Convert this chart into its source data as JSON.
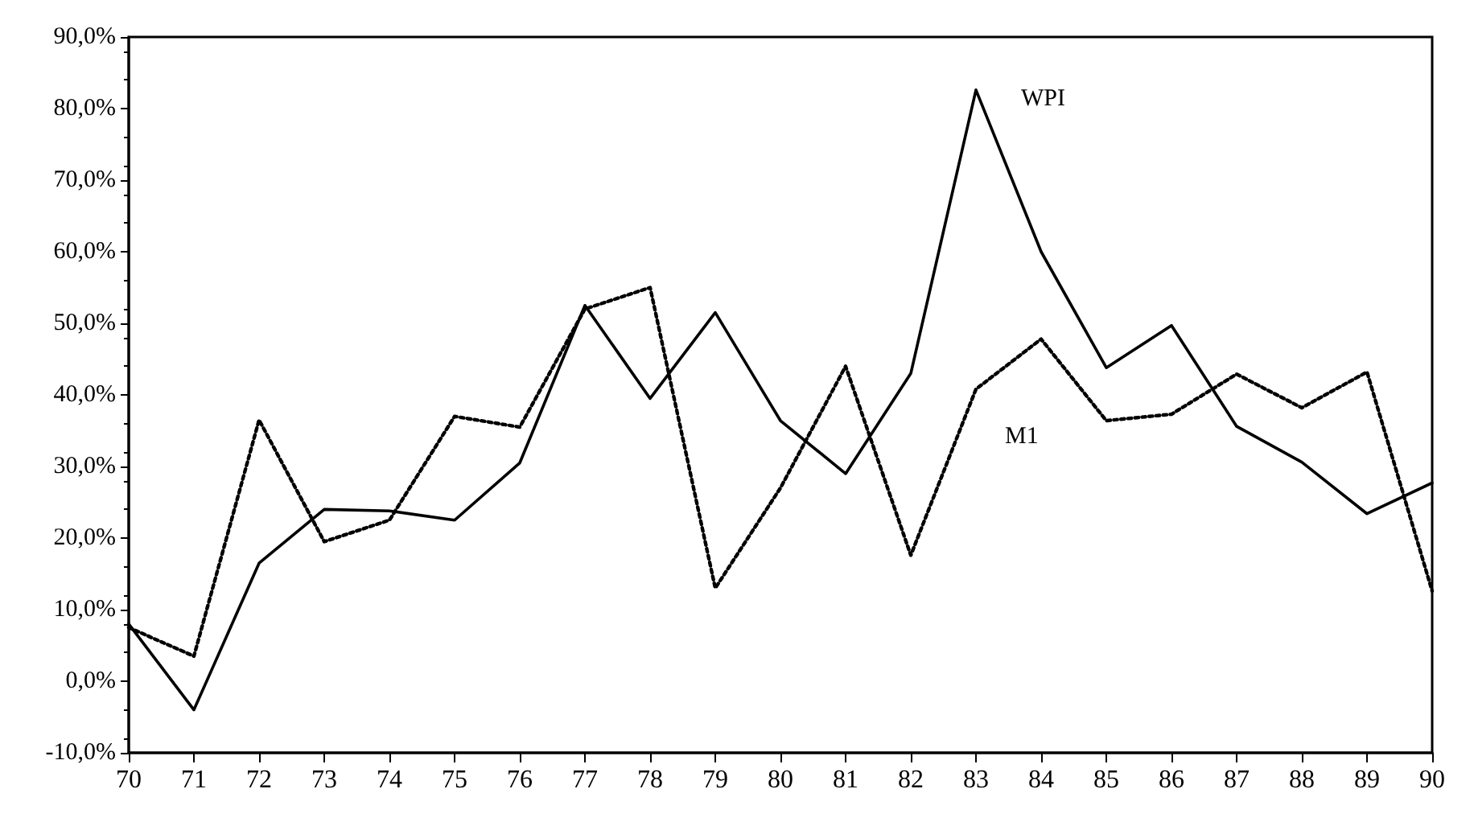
{
  "chart_data": {
    "type": "line",
    "x": [
      70,
      71,
      72,
      73,
      74,
      75,
      76,
      77,
      78,
      79,
      80,
      81,
      82,
      83,
      84,
      85,
      86,
      87,
      88,
      89,
      90
    ],
    "series": [
      {
        "name": "WPI",
        "color": "#000000",
        "line_style": "solid",
        "values": [
          8,
          -4,
          16.5,
          24,
          23.8,
          22.5,
          30.5,
          52.5,
          39.5,
          51.5,
          36.4,
          29,
          43,
          82.6,
          60,
          43.8,
          49.7,
          35.6,
          30.6,
          23.4,
          27.7
        ]
      },
      {
        "name": "M1",
        "color": "#000000",
        "line_style": "dotted",
        "values": [
          7.5,
          3.5,
          36.5,
          19.5,
          22.5,
          37,
          35.5,
          52,
          55,
          13,
          27,
          44,
          17.6,
          40.8,
          47.8,
          36.4,
          37.3,
          42.9,
          38.2,
          43.2,
          12.6
        ]
      }
    ],
    "xlim": [
      70,
      90
    ],
    "xticks": [
      70,
      71,
      72,
      73,
      74,
      75,
      76,
      77,
      78,
      79,
      80,
      81,
      82,
      83,
      84,
      85,
      86,
      87,
      88,
      89,
      90
    ],
    "ylim": [
      -10,
      90
    ],
    "yticks": [
      {
        "value": -10,
        "label": "-10,0%"
      },
      {
        "value": 0,
        "label": "0,0%"
      },
      {
        "value": 10,
        "label": "10,0%"
      },
      {
        "value": 20,
        "label": "20,0%"
      },
      {
        "value": 30,
        "label": "30,0%"
      },
      {
        "value": 40,
        "label": "40,0%"
      },
      {
        "value": 50,
        "label": "50,0%"
      },
      {
        "value": 60,
        "label": "60,0%"
      },
      {
        "value": 70,
        "label": "70,0%"
      },
      {
        "value": 80,
        "label": "80,0%"
      },
      {
        "value": 90,
        "label": "90,0%"
      }
    ],
    "grid": false,
    "legend": false,
    "marker": "none"
  }
}
